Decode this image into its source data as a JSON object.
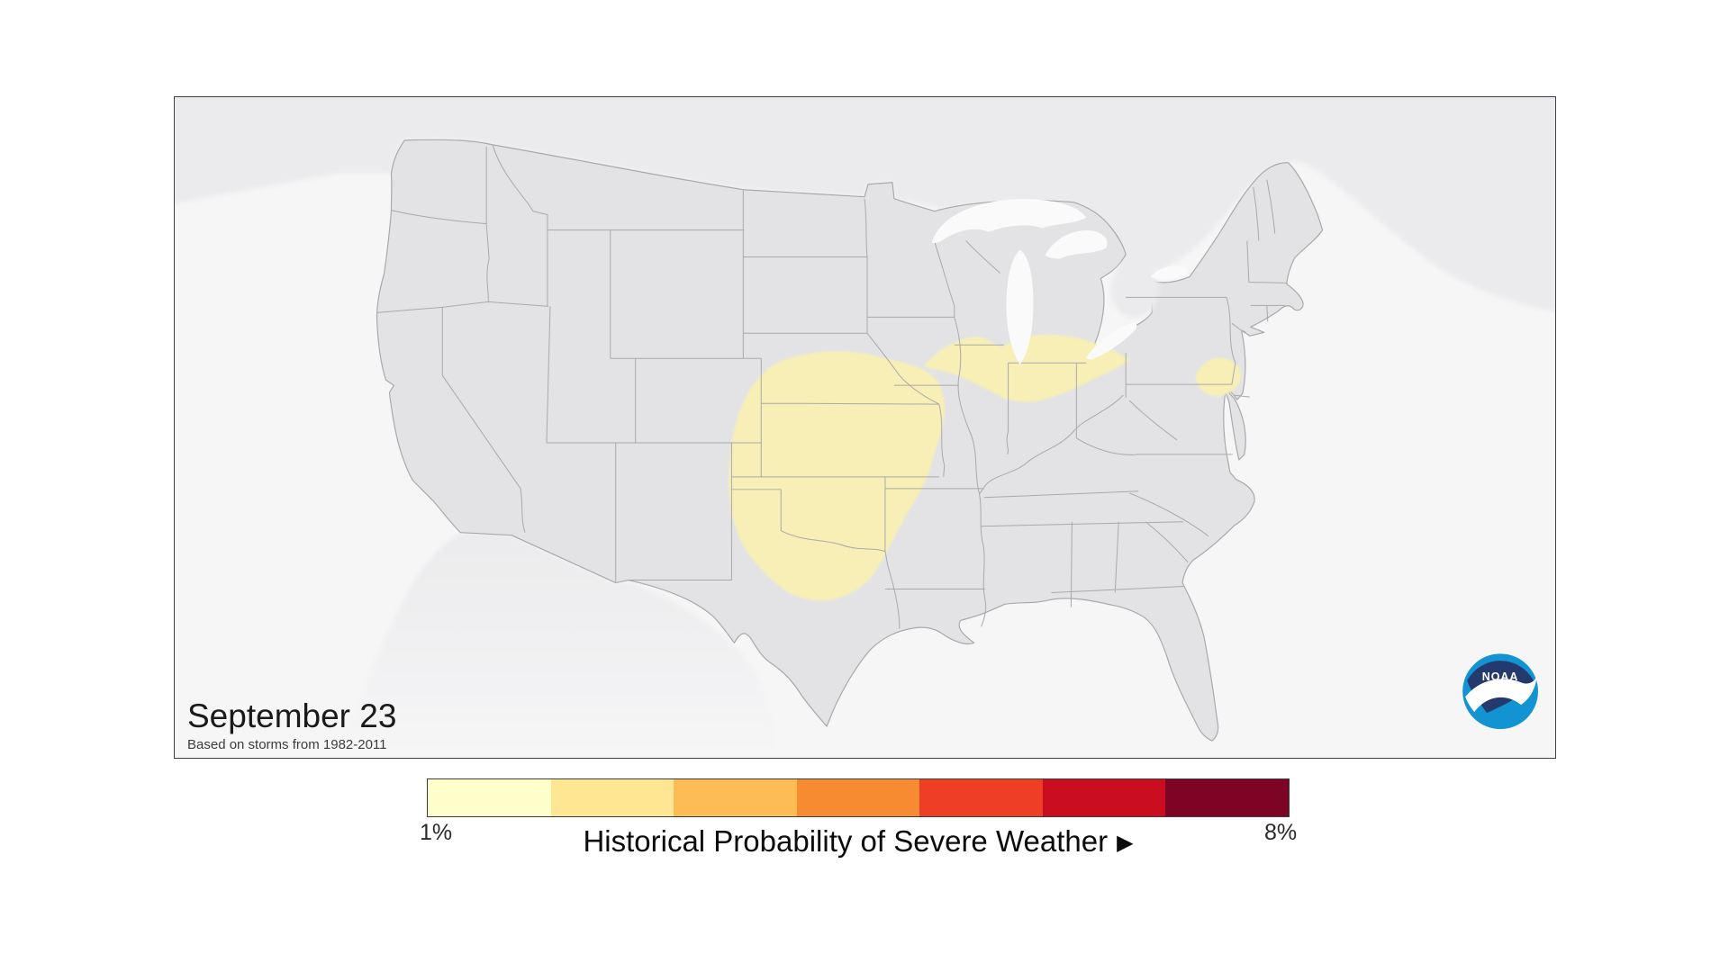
{
  "map_panel": {
    "date_label": "September 23",
    "source_note": "Based on storms from 1982-2011",
    "background": "#f6f6f7",
    "land_fill": "#e3e3e5",
    "neighbor_fill": "#ebebed",
    "lake_fill": "#fafafb",
    "state_border_color": "#a9a9ab",
    "risk_region_fill": "#f7efb5",
    "regions": [
      {
        "name": "Central Plains (Nebraska, Kansas, Oklahoma, SW Iowa, NW Missouri)",
        "probability": "1%"
      },
      {
        "name": "Midwest (E Iowa, N Illinois, N Indiana, NW Ohio)",
        "probability": "1%"
      },
      {
        "name": "Mid-Atlantic (Maryland, S Pennsylvania)",
        "probability": "1%"
      }
    ]
  },
  "noaa_logo": {
    "text": "NOAA",
    "navy": "#243a6e",
    "light_blue": "#1293d2"
  },
  "legend": {
    "title": "Historical Probability of Severe Weather",
    "arrow": "▶",
    "min_label": "1%",
    "max_label": "8%",
    "colors": [
      "#FFFFCC",
      "#FEE692",
      "#FDBC56",
      "#F78B31",
      "#EE3E25",
      "#CB0D20",
      "#7D0425"
    ]
  }
}
